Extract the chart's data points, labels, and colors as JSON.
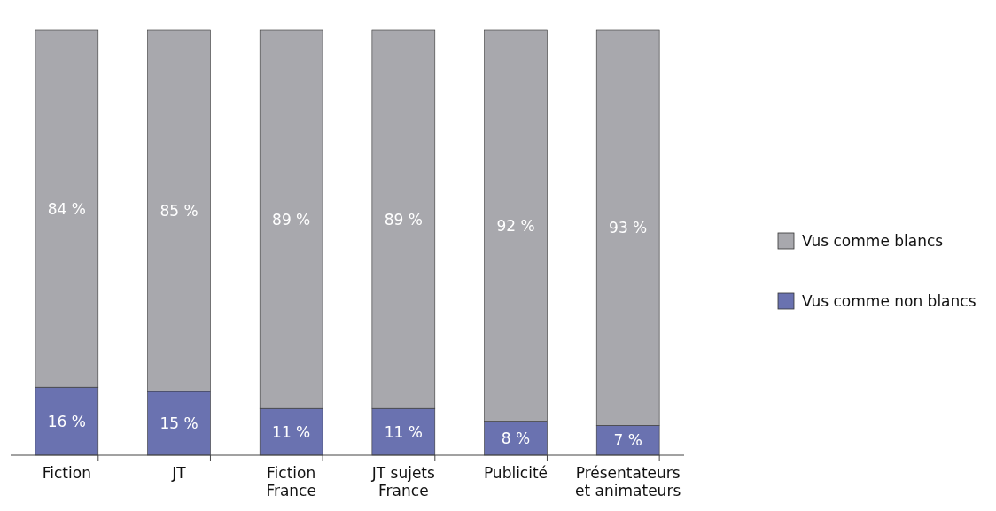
{
  "chart_data": {
    "type": "bar",
    "stacked": true,
    "legend": "right",
    "categories": [
      "Fiction",
      "JT",
      "Fiction France",
      "JT sujets France",
      "Publicité",
      "Présentateurs et animateurs"
    ],
    "series": [
      {
        "name": "Vus comme non blancs",
        "color": "#6a72b0",
        "values": [
          16,
          15,
          11,
          11,
          8,
          7
        ],
        "value_labels": [
          "16 %",
          "15 %",
          "11 %",
          "11 %",
          "8 %",
          "7 %"
        ]
      },
      {
        "name": "Vus comme blancs",
        "color": "#a8a8ad",
        "values": [
          84,
          85,
          89,
          89,
          92,
          93
        ],
        "value_labels": [
          "84 %",
          "85 %",
          "89 %",
          "89 %",
          "92 %",
          "93 %"
        ]
      }
    ]
  }
}
